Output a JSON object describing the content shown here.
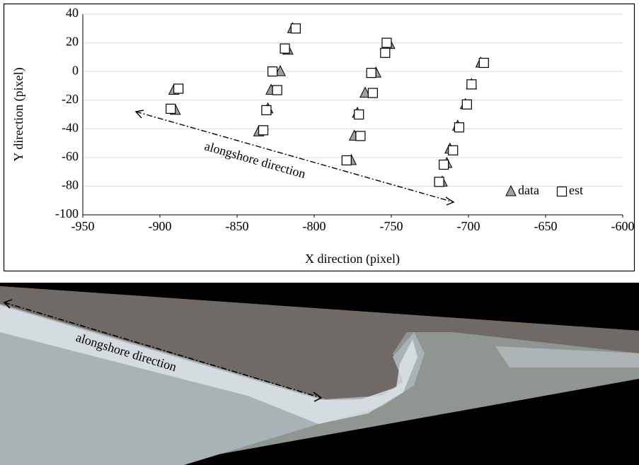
{
  "chart_data": {
    "type": "scatter",
    "xlabel": "X direction (pixel)",
    "ylabel": "Y direction (pixel)",
    "annotation": "alongshore direction",
    "xlim": [
      -950,
      -600
    ],
    "xticks": [
      -950,
      -900,
      -850,
      -800,
      -750,
      -700,
      -650,
      -600
    ],
    "ylim": [
      -100,
      40
    ],
    "yticks": [
      -100,
      -80,
      -60,
      -40,
      -20,
      0,
      20,
      40
    ],
    "grid": true,
    "legend": "lower right",
    "series": [
      {
        "name": "data",
        "color": "#a0a0a0",
        "marker": "triangle",
        "x": [
          -891,
          -890,
          -814,
          -817,
          -822,
          -828,
          -830,
          -836,
          -751,
          -760,
          -767,
          -772,
          -774,
          -776,
          -692,
          -698,
          -702,
          -707,
          -712,
          -714,
          -717
        ],
        "y": [
          -13,
          -27,
          30,
          15,
          0,
          -13,
          -26,
          -42,
          19,
          -1,
          -15,
          -29,
          -45,
          -62,
          6,
          -9,
          -23,
          -38,
          -54,
          -64,
          -77
        ]
      },
      {
        "name": "est",
        "color": "#ffffff",
        "marker": "square",
        "x": [
          -888,
          -893,
          -812,
          -819,
          -827,
          -824,
          -831,
          -833,
          -753,
          -754,
          -763,
          -762,
          -771,
          -770,
          -779,
          -690,
          -698,
          -701,
          -706,
          -710,
          -716,
          -719
        ],
        "y": [
          -12,
          -26,
          30,
          16,
          0,
          -13,
          -27,
          -41,
          20,
          13,
          -1,
          -15,
          -30,
          -45,
          -62,
          6,
          -9,
          -23,
          -39,
          -55,
          -65,
          -77
        ]
      }
    ]
  },
  "photo": {
    "annotation": "alongshore direction"
  }
}
